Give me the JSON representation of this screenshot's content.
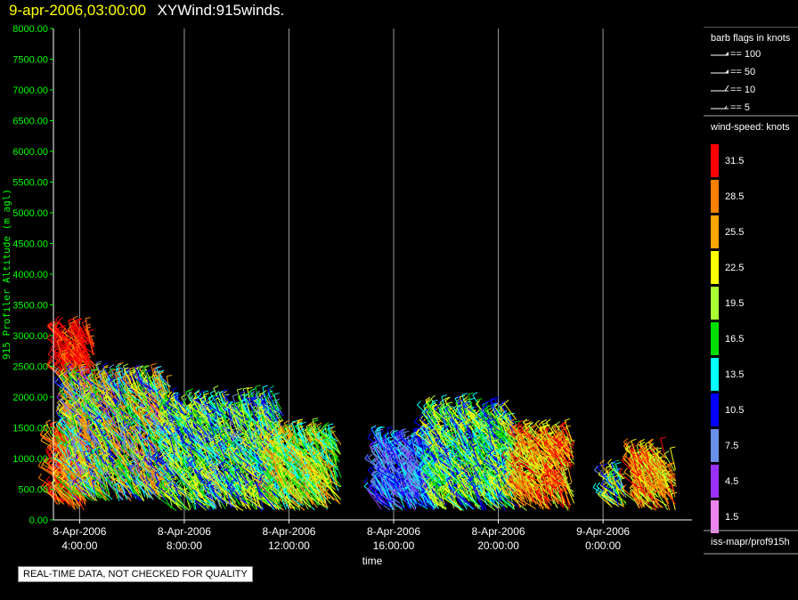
{
  "header": {
    "time": "9-apr-2006,03:00:00",
    "name": "XYWind:915winds."
  },
  "colors": {
    "background": "#000000",
    "y_axis_text": "#00ff00",
    "axis_text": "#ffffff",
    "title_time": "#ffff00"
  },
  "chart_data": {
    "type": "scatter",
    "subtype": "wind-barb time-height plot",
    "ylabel": "915 Profiler Altitude (m agl)",
    "xlabel": "time",
    "ylim": [
      0,
      8000
    ],
    "y_ticks": [
      "0.00",
      "500.00",
      "1000.00",
      "1500.00",
      "2000.00",
      "2500.00",
      "3000.00",
      "3500.00",
      "4000.00",
      "4500.00",
      "5000.00",
      "5500.00",
      "6000.00",
      "6500.00",
      "7000.00",
      "7500.00",
      "8000.00"
    ],
    "y_tick_values": [
      0,
      500,
      1000,
      1500,
      2000,
      2500,
      3000,
      3500,
      4000,
      4500,
      5000,
      5500,
      6000,
      6500,
      7000,
      7500,
      8000
    ],
    "x_range_hours": [
      3.0,
      27.4
    ],
    "x_ticks": [
      {
        "hour": 4,
        "date": "8-Apr-2006",
        "time": "4:00:00"
      },
      {
        "hour": 8,
        "date": "8-Apr-2006",
        "time": "8:00:00"
      },
      {
        "hour": 12,
        "date": "8-Apr-2006",
        "time": "12:00:00"
      },
      {
        "hour": 16,
        "date": "8-Apr-2006",
        "time": "16:00:00"
      },
      {
        "hour": 20,
        "date": "8-Apr-2006",
        "time": "20:00:00"
      },
      {
        "hour": 24,
        "date": "9-Apr-2006",
        "time": "0:00:00"
      }
    ],
    "grid": "vertical lines at x ticks",
    "wind_speed_bins": [
      {
        "label": "31.5",
        "color": "#ff0000"
      },
      {
        "label": "28.5",
        "color": "#ff7f00"
      },
      {
        "label": "25.5",
        "color": "#ffa500"
      },
      {
        "label": "22.5",
        "color": "#ffff00"
      },
      {
        "label": "19.5",
        "color": "#aaff33"
      },
      {
        "label": "16.5",
        "color": "#00dd00"
      },
      {
        "label": "13.5",
        "color": "#00ffff"
      },
      {
        "label": "10.5",
        "color": "#0000ff"
      },
      {
        "label": "7.5",
        "color": "#6a8fe8"
      },
      {
        "label": "4.5",
        "color": "#9b30ff"
      },
      {
        "label": "1.5",
        "color": "#ee82ee"
      }
    ],
    "data_regions": [
      {
        "t0": 3.1,
        "t1": 4.3,
        "h0": 150,
        "h1": 1300,
        "speed": [
          24,
          34
        ]
      },
      {
        "t0": 3.3,
        "t1": 4.6,
        "h0": 2300,
        "h1": 3000,
        "speed": [
          28,
          34
        ]
      },
      {
        "t0": 3.6,
        "t1": 7.5,
        "h0": 300,
        "h1": 2200,
        "speed": [
          5,
          30
        ]
      },
      {
        "t0": 7.5,
        "t1": 11.8,
        "h0": 150,
        "h1": 1800,
        "speed": [
          8,
          24
        ]
      },
      {
        "t0": 11.5,
        "t1": 14.0,
        "h0": 150,
        "h1": 1300,
        "speed": [
          12,
          28
        ]
      },
      {
        "t0": 15.5,
        "t1": 17.8,
        "h0": 150,
        "h1": 1200,
        "speed": [
          5,
          14
        ]
      },
      {
        "t0": 17.5,
        "t1": 20.8,
        "h0": 150,
        "h1": 1700,
        "speed": [
          9,
          24
        ]
      },
      {
        "t0": 20.8,
        "t1": 22.9,
        "h0": 150,
        "h1": 1300,
        "speed": [
          18,
          33
        ]
      },
      {
        "t0": 24.3,
        "t1": 24.9,
        "h0": 150,
        "h1": 700,
        "speed": [
          8,
          26
        ]
      },
      {
        "t0": 25.3,
        "t1": 26.8,
        "h0": 150,
        "h1": 1000,
        "speed": [
          18,
          33
        ]
      }
    ]
  },
  "legend": {
    "barb_title": "barb flags in knots",
    "barb_items": [
      {
        "label": "== 100",
        "type": "triangle"
      },
      {
        "label": "== 50",
        "type": "triangle-small"
      },
      {
        "label": "== 10",
        "type": "long"
      },
      {
        "label": "== 5",
        "type": "short"
      }
    ],
    "speed_title": "wind-speed: knots"
  },
  "footer": {
    "source": "iss-mapr/prof915h",
    "quality_note": "REAL-TIME DATA, NOT CHECKED FOR QUALITY"
  }
}
